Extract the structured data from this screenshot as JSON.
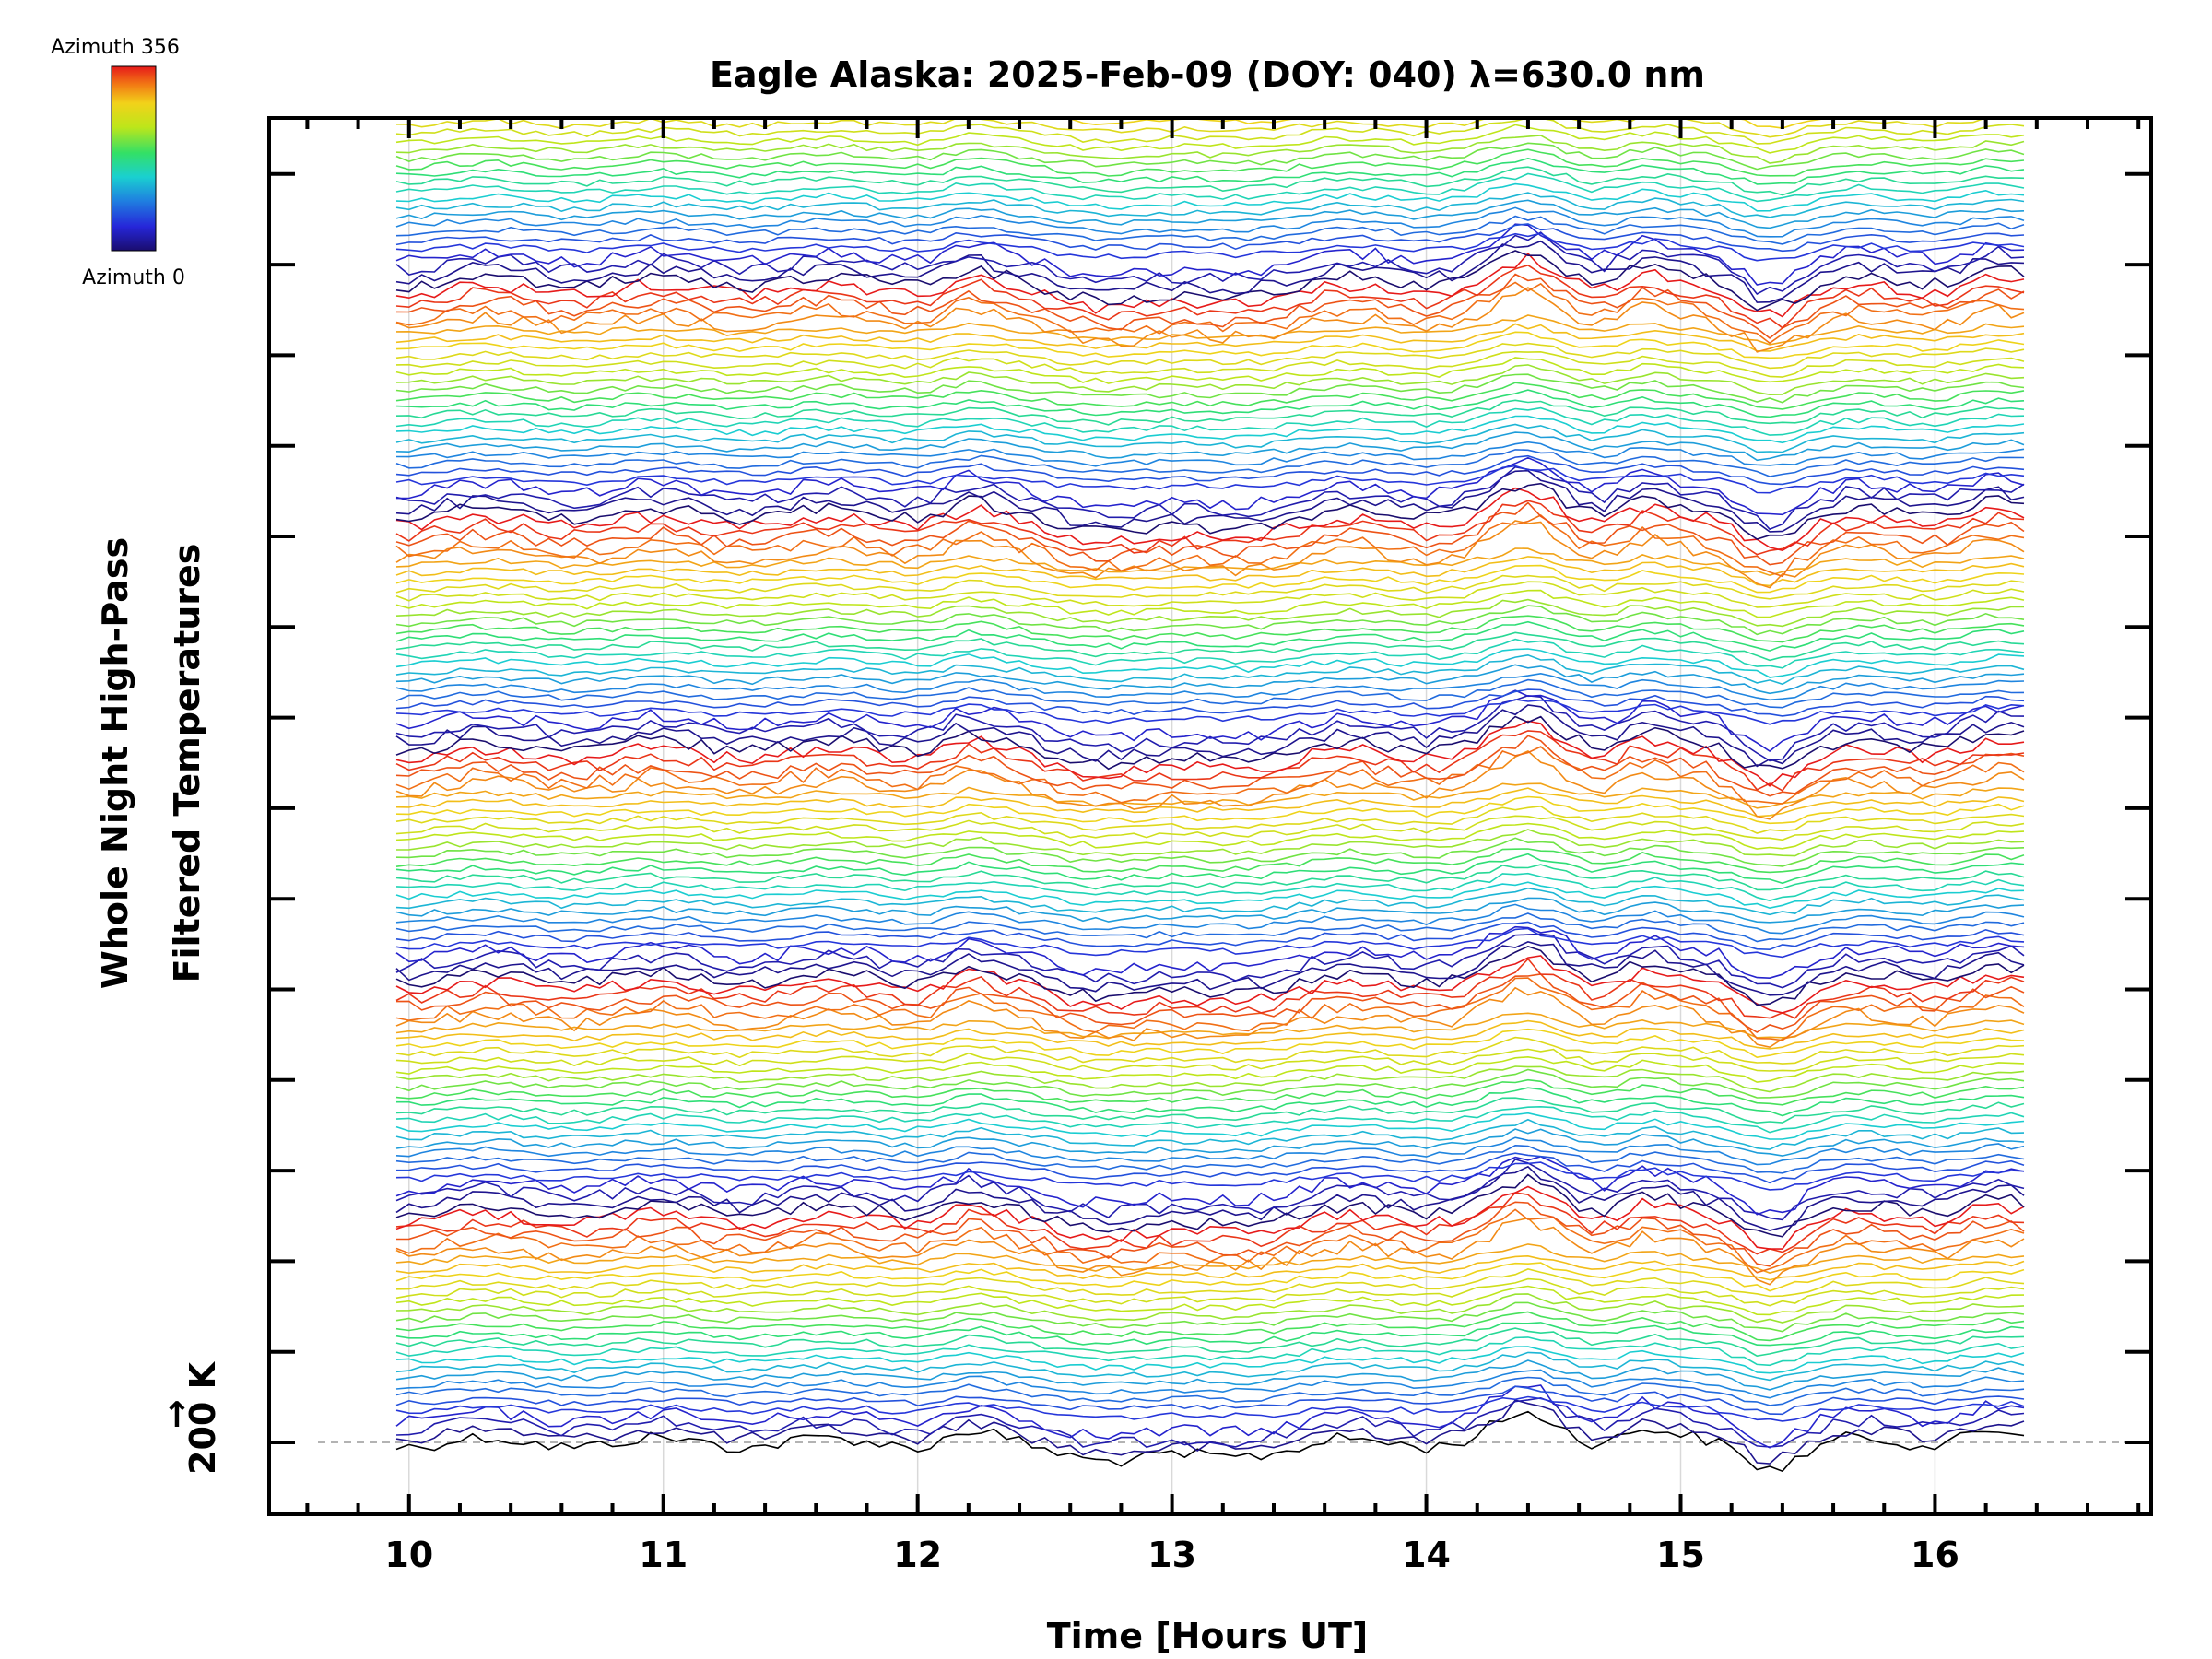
{
  "chart_data": {
    "type": "line",
    "title": "Eagle Alaska: 2025-Feb-09 (DOY: 040) λ=630.0 nm",
    "xlabel": "Time [Hours UT]",
    "ylabel": [
      "Whole Night High-Pass",
      "Filtered Temperatures"
    ],
    "xlim": [
      9.45,
      16.85
    ],
    "x_ticks": [
      "10",
      "11",
      "12",
      "13",
      "14",
      "15",
      "16"
    ],
    "x_tick_values": [
      10,
      11,
      12,
      13,
      14,
      15,
      16
    ],
    "x_start": 9.95,
    "x_end": 16.37,
    "x_step": 0.05,
    "y_scale_label": "200 K",
    "y_scale_arrow": "↑",
    "n_groups": 6,
    "traces_per_group": 28,
    "top_group_traces": 22,
    "colorbar": {
      "top_label": "Azimuth 356",
      "bottom_label": "Azimuth 0",
      "colors": [
        "#1a0d6e",
        "#2626d9",
        "#1f7fe0",
        "#1ad0d0",
        "#33e066",
        "#bde61a",
        "#f2d21a",
        "#f27a14",
        "#e61a1a"
      ]
    },
    "grid": true
  }
}
